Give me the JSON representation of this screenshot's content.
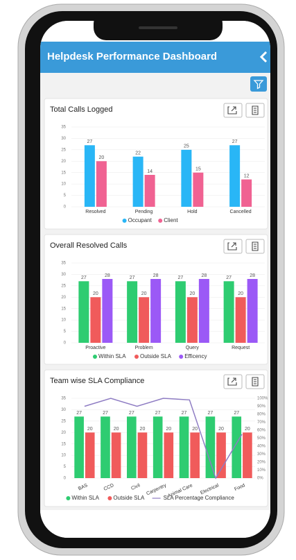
{
  "header": {
    "title": "Helpdesk Performance Dashboard"
  },
  "chart_data": [
    {
      "type": "bar",
      "title": "Total Calls Logged",
      "categories": [
        "Resolved",
        "Pending",
        "Hold",
        "Cancelled"
      ],
      "series": [
        {
          "name": "Occupant",
          "color": "#29b6f6",
          "values": [
            27,
            22,
            25,
            27
          ]
        },
        {
          "name": "Client",
          "color": "#f06292",
          "values": [
            20,
            14,
            15,
            12
          ]
        }
      ],
      "ylim": [
        0,
        35
      ],
      "yticks": [
        0,
        5,
        10,
        15,
        20,
        25,
        30,
        35
      ],
      "grid": true,
      "legend": "bottom"
    },
    {
      "type": "bar",
      "title": "Overall Resolved Calls",
      "categories": [
        "Proactive",
        "Problem",
        "Query",
        "Request"
      ],
      "series": [
        {
          "name": "Within SLA",
          "color": "#2ecc71",
          "values": [
            27,
            27,
            27,
            27
          ]
        },
        {
          "name": "Outside SLA",
          "color": "#f05b5b",
          "values": [
            20,
            20,
            20,
            20
          ]
        },
        {
          "name": "Efficency",
          "color": "#9b59f6",
          "values": [
            28,
            28,
            28,
            28
          ]
        }
      ],
      "ylim": [
        0,
        35
      ],
      "yticks": [
        0,
        5,
        10,
        15,
        20,
        25,
        30,
        35
      ],
      "grid": true,
      "legend": "bottom"
    },
    {
      "type": "bar",
      "title": "Team wise SLA Compliance",
      "categories": [
        "BAS",
        "CCD",
        "Civil",
        "Carpentry",
        "Animal Care",
        "Electrical",
        "Food"
      ],
      "series": [
        {
          "name": "Within SLA",
          "color": "#2ecc71",
          "values": [
            27,
            27,
            27,
            27,
            27,
            27,
            27
          ]
        },
        {
          "name": "Outside SLA",
          "color": "#f05b5b",
          "values": [
            20,
            20,
            20,
            20,
            20,
            20,
            20
          ]
        },
        {
          "name": "SLA Percentage Compliance",
          "color": "#8e7cc3",
          "type": "line",
          "axis": "y2",
          "values": [
            90,
            100,
            90,
            100,
            98,
            0,
            55
          ]
        }
      ],
      "ylim": [
        0,
        35
      ],
      "yticks": [
        0,
        5,
        10,
        15,
        20,
        25,
        30,
        35
      ],
      "y2lim": [
        0,
        100
      ],
      "y2ticks": [
        {
          "value": 0,
          "label": "0%"
        },
        {
          "value": 10,
          "label": "10%"
        },
        {
          "value": 20,
          "label": "20%"
        },
        {
          "value": 30,
          "label": "30%"
        },
        {
          "value": 40,
          "label": "40%"
        },
        {
          "value": 50,
          "label": "50%"
        },
        {
          "value": 60,
          "label": "60%"
        },
        {
          "value": 70,
          "label": "70%"
        },
        {
          "value": 80,
          "label": "80%"
        },
        {
          "value": 90,
          "label": "90%"
        },
        {
          "value": 100,
          "label": "100%"
        }
      ],
      "grid": true,
      "legend": "bottom"
    }
  ]
}
